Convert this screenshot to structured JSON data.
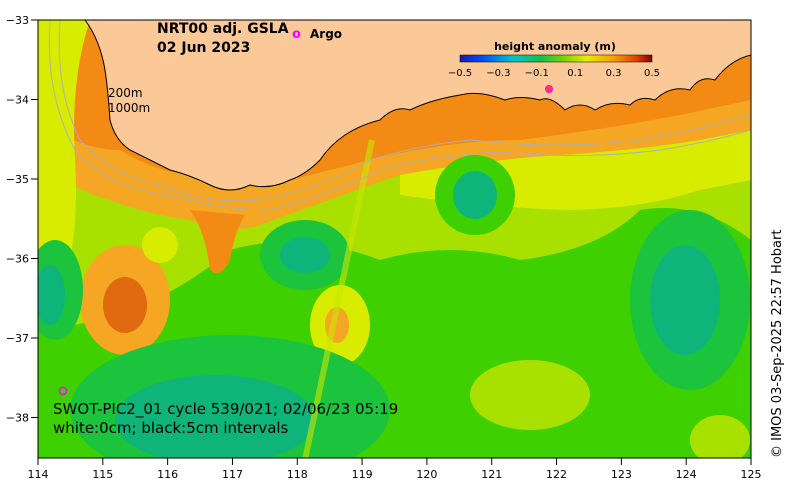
{
  "title": {
    "line1": "NRT00 adj. GSLA",
    "line2": "02 Jun 2023"
  },
  "legend": {
    "argo_label": "Argo",
    "argo_symbol": "o"
  },
  "colorbar": {
    "title": "height anomaly (m)",
    "ticks": [
      "−0.5",
      "−0.3",
      "−0.1",
      "0.1",
      "0.3",
      "0.5"
    ]
  },
  "isobaths": {
    "label_200": "200m",
    "label_1000": "1000m"
  },
  "axes": {
    "x_ticks": [
      "114",
      "115",
      "116",
      "117",
      "118",
      "119",
      "120",
      "121",
      "122",
      "123",
      "124",
      "125"
    ],
    "y_ticks": [
      "−33",
      "−34",
      "−35",
      "−36",
      "−37",
      "−38"
    ]
  },
  "swot": {
    "line1": "SWOT-PIC2_01 cycle 539/021; 02/06/23 05:19",
    "line2": "white:0cm; black:5cm intervals"
  },
  "credit": "© IMOS 03-Sep-2025 22:57 Hobart",
  "colors": {
    "land": "#fbc897",
    "orange": "#f28a14",
    "orange_light": "#f5a623",
    "yellow": "#d8ec00",
    "yellow_green": "#a8e000",
    "green": "#3ed000",
    "green_mid": "#1cc33c",
    "teal": "#0fb47a",
    "argo": "#ff00ff"
  }
}
